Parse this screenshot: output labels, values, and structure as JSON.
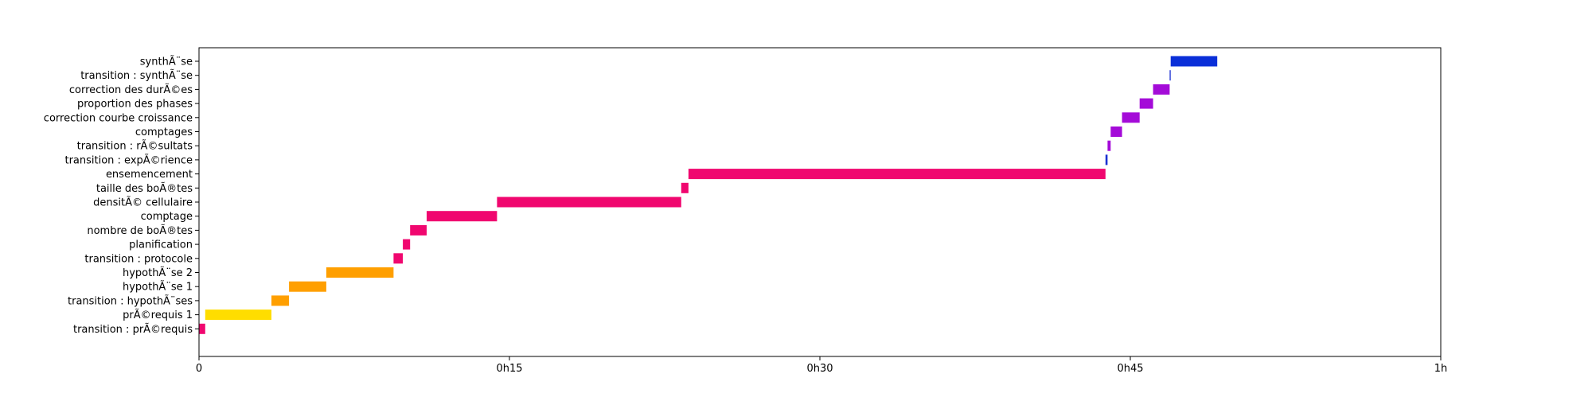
{
  "chart_data": {
    "type": "bar",
    "orientation": "horizontal",
    "xlabel": "",
    "ylabel": "",
    "xlim": [
      0,
      60
    ],
    "x_unit": "minutes",
    "grid": false,
    "x_ticks": [
      {
        "value": 0,
        "label": "0"
      },
      {
        "value": 15,
        "label": "0h15"
      },
      {
        "value": 30,
        "label": "0h30"
      },
      {
        "value": 45,
        "label": "0h45"
      },
      {
        "value": 60,
        "label": "1h"
      }
    ],
    "tasks": [
      {
        "label": "transition : prÃ©requis",
        "start": 0.0,
        "end": 0.3,
        "color": "#f0076f"
      },
      {
        "label": "prÃ©requis 1",
        "start": 0.3,
        "end": 3.5,
        "color": "#ffdd00"
      },
      {
        "label": "transition : hypothÃ¨ses",
        "start": 3.5,
        "end": 4.35,
        "color": "#ff9f00"
      },
      {
        "label": "hypothÃ¨se 1",
        "start": 4.35,
        "end": 6.15,
        "color": "#ff9f00"
      },
      {
        "label": "hypothÃ¨se 2",
        "start": 6.15,
        "end": 9.4,
        "color": "#ff9f00"
      },
      {
        "label": "transition : protocole",
        "start": 9.4,
        "end": 9.85,
        "color": "#f0076f"
      },
      {
        "label": "planification",
        "start": 9.85,
        "end": 10.2,
        "color": "#f0076f"
      },
      {
        "label": "nombre de boÃ®tes",
        "start": 10.2,
        "end": 11.0,
        "color": "#f0076f"
      },
      {
        "label": "comptage",
        "start": 11.0,
        "end": 14.4,
        "color": "#f0076f"
      },
      {
        "label": "densitÃ© cellulaire",
        "start": 14.4,
        "end": 23.3,
        "color": "#f0076f"
      },
      {
        "label": "taille des boÃ®tes",
        "start": 23.3,
        "end": 23.65,
        "color": "#f0076f"
      },
      {
        "label": "ensemencement",
        "start": 23.65,
        "end": 43.8,
        "color": "#f0076f"
      },
      {
        "label": "transition : expÃ©rience",
        "start": 43.8,
        "end": 43.9,
        "color": "#1a2fd1"
      },
      {
        "label": "transition : rÃ©sultats",
        "start": 43.9,
        "end": 44.05,
        "color": "#a40bd8"
      },
      {
        "label": "comptages",
        "start": 44.05,
        "end": 44.6,
        "color": "#a40bd8"
      },
      {
        "label": "correction courbe croissance",
        "start": 44.6,
        "end": 45.45,
        "color": "#a40bd8"
      },
      {
        "label": "proportion des phases",
        "start": 45.45,
        "end": 46.1,
        "color": "#a40bd8"
      },
      {
        "label": "correction des durÃ©es",
        "start": 46.1,
        "end": 46.9,
        "color": "#a40bd8"
      },
      {
        "label": "transition : synthÃ¨se",
        "start": 46.9,
        "end": 46.95,
        "color": "#1a2fd1"
      },
      {
        "label": "synthÃ¨se",
        "start": 46.95,
        "end": 49.2,
        "color": "#0a2fd8"
      }
    ]
  }
}
